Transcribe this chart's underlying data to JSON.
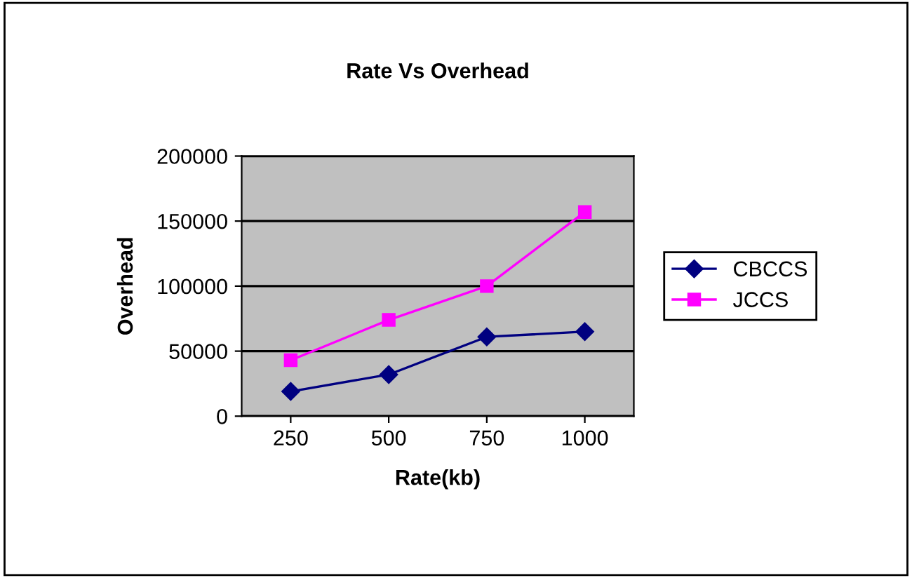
{
  "chart_data": {
    "type": "line",
    "title": "Rate Vs Overhead",
    "xlabel": "Rate(kb)",
    "ylabel": "Overhead",
    "categories": [
      "250",
      "500",
      "750",
      "1000"
    ],
    "series": [
      {
        "name": "CBCCS",
        "color": "#000080",
        "values": [
          19000,
          32000,
          61000,
          65000
        ],
        "marker": "diamond"
      },
      {
        "name": "JCCS",
        "color": "#ff00ff",
        "values": [
          43000,
          74000,
          100000,
          157000
        ],
        "marker": "square"
      }
    ],
    "ylim": [
      0,
      200000
    ],
    "yticks": [
      0,
      50000,
      100000,
      150000,
      200000
    ],
    "grid": "y",
    "legend": "right"
  }
}
